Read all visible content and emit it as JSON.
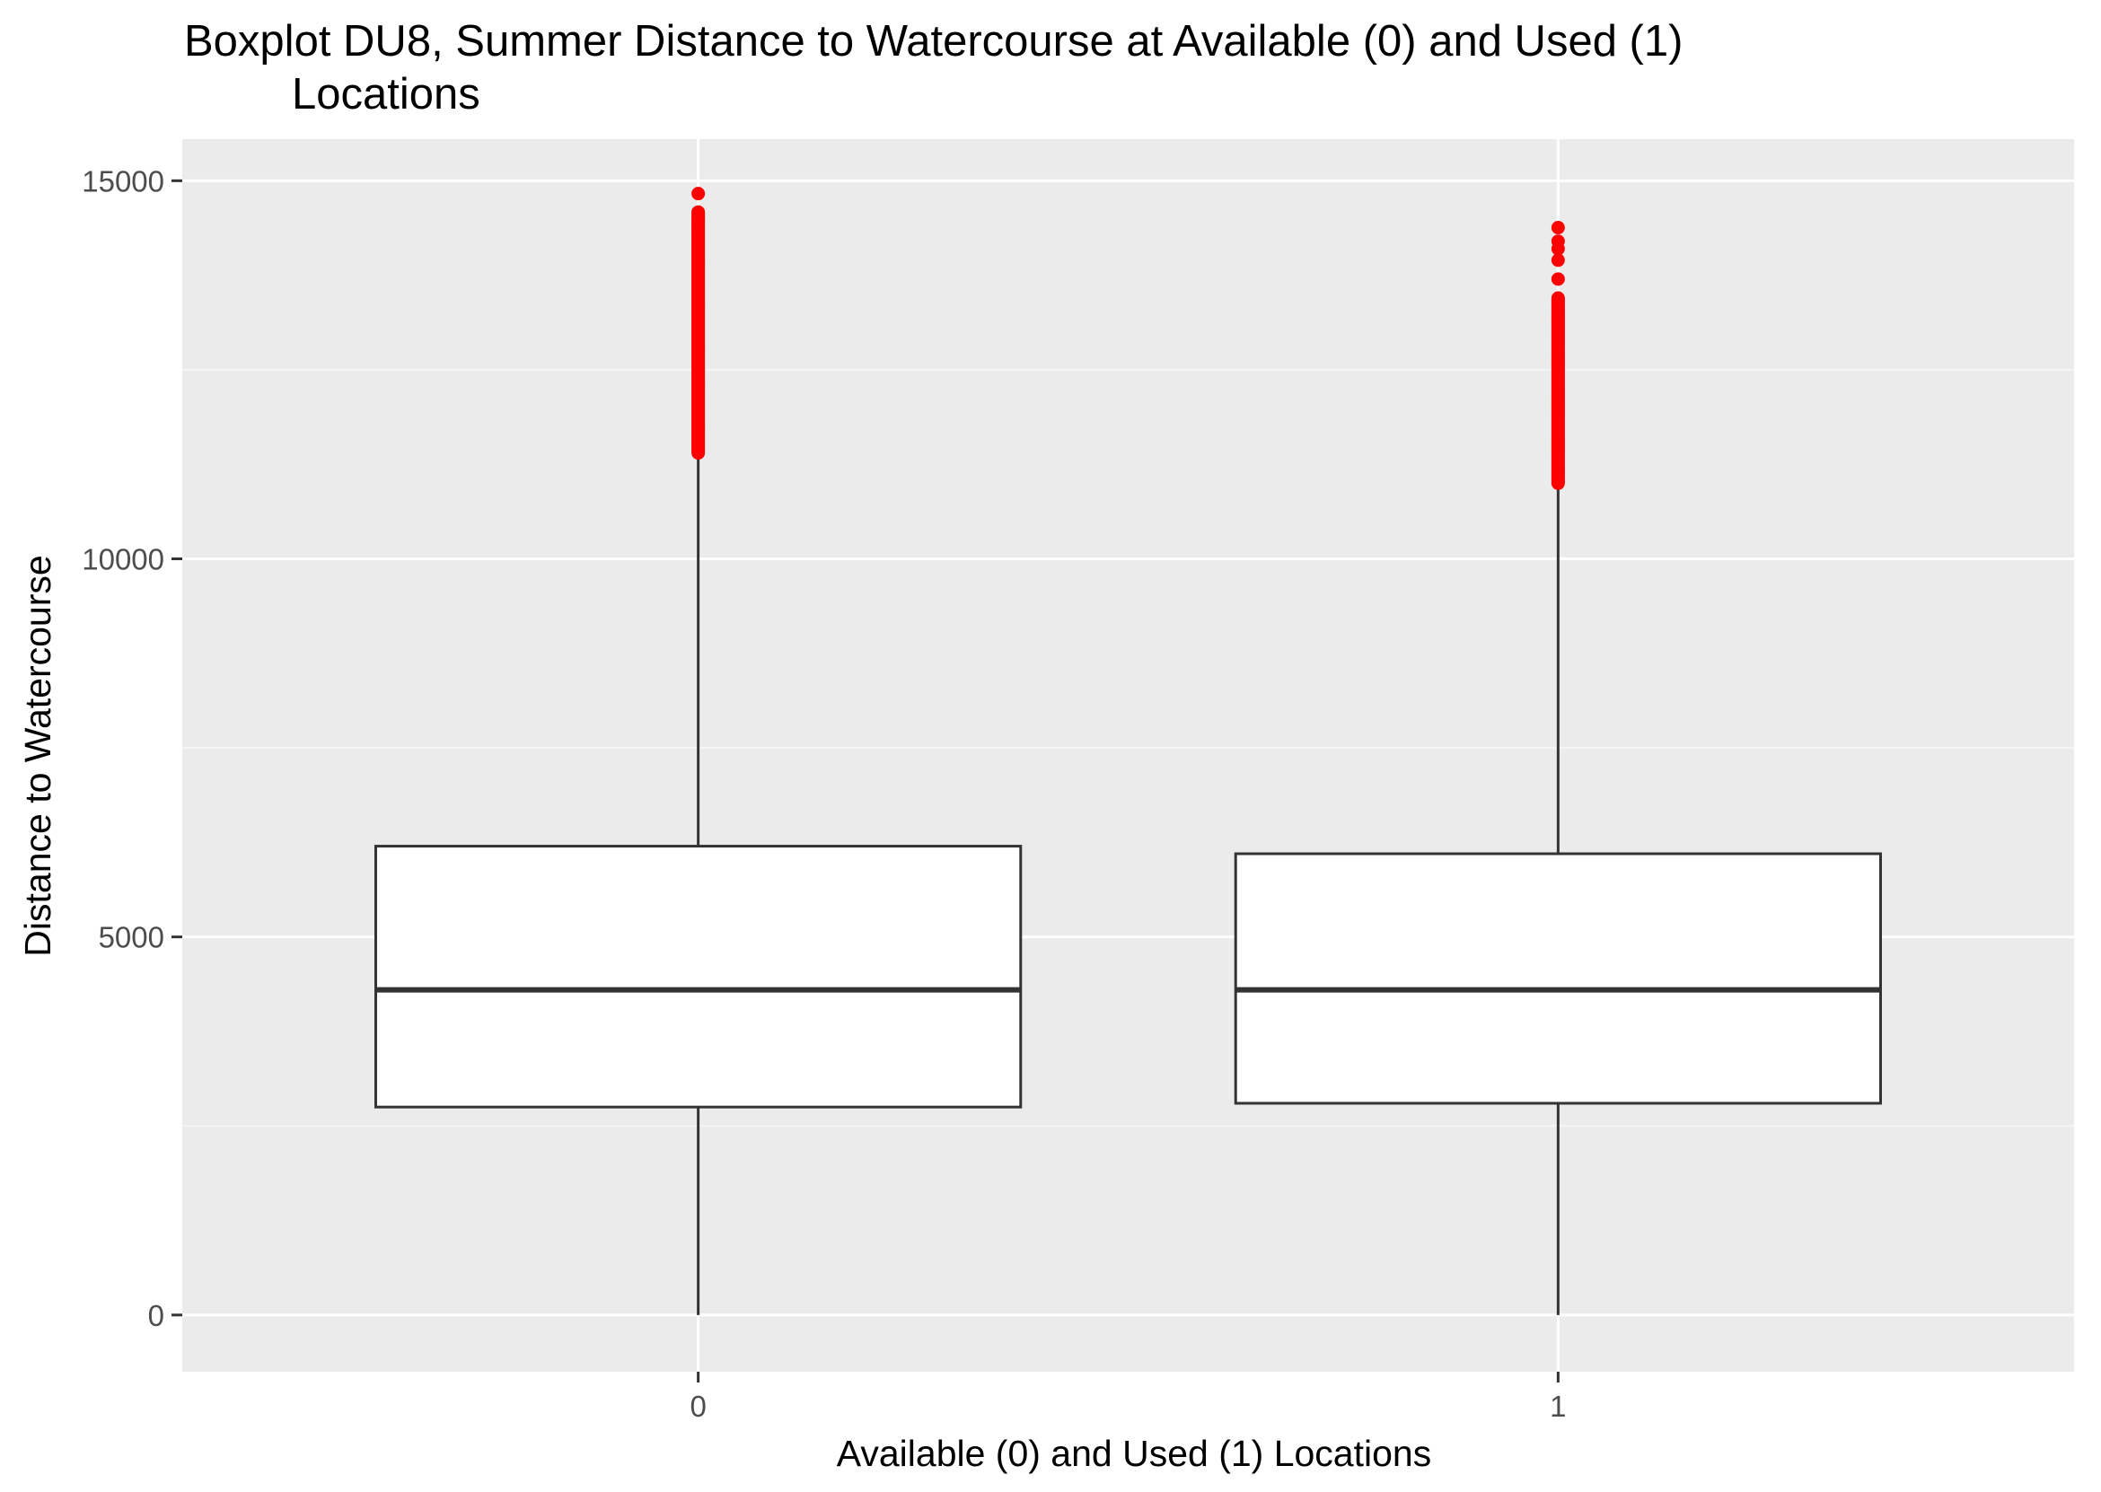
{
  "chart_data": {
    "type": "boxplot",
    "title_lines": [
      "Boxplot DU8, Summer Distance to Watercourse at Available (0) and Used (1)",
      "Locations"
    ],
    "xlabel": "Available (0) and Used (1) Locations",
    "ylabel": "Distance to Watercourse",
    "categories": [
      "0",
      "1"
    ],
    "ylim": [
      -750,
      15550
    ],
    "y_ticks": [
      0,
      5000,
      10000,
      15000
    ],
    "y_tick_labels": [
      "0",
      "5000",
      "10000",
      "15000"
    ],
    "y_minor_ticks": [
      2500,
      7500,
      12500
    ],
    "grid": true,
    "boxes": [
      {
        "category": "0",
        "whisker_low": 0,
        "q1": 2750,
        "median": 4300,
        "q3": 6200,
        "whisker_high": 11400,
        "outliers_range": [
          11400,
          14600
        ],
        "outliers_extra": [
          14830
        ]
      },
      {
        "category": "1",
        "whisker_low": 0,
        "q1": 2800,
        "median": 4300,
        "q3": 6100,
        "whisker_high": 11000,
        "outliers_range": [
          11000,
          13450
        ],
        "outliers_extra": [
          13700,
          13950,
          14100,
          14200,
          14380
        ]
      }
    ],
    "colors": {
      "panel_background": "#ebebeb",
      "grid_major": "#ffffff",
      "grid_minor": "#f5f5f5",
      "box_fill": "#ffffff",
      "box_line": "#333333",
      "outlier": "#ff0000"
    }
  }
}
